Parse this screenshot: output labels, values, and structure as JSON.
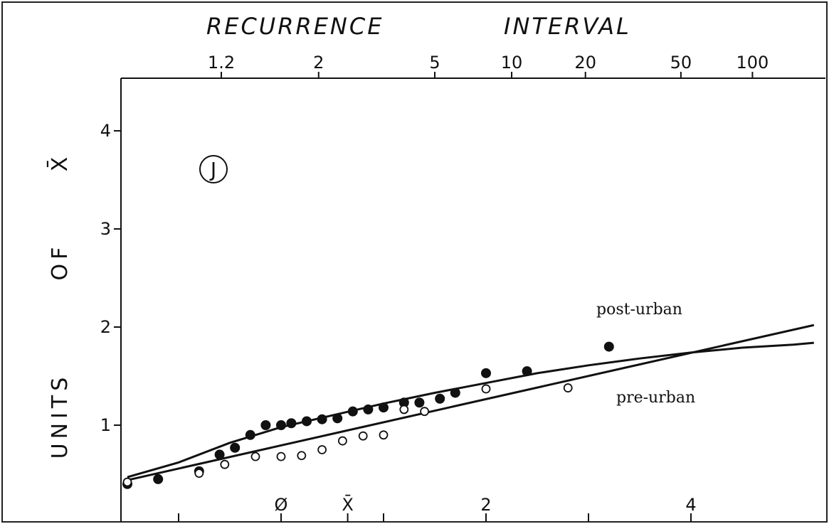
{
  "chart_data": {
    "type": "scatter",
    "panel_label": "J",
    "top_axis": {
      "title": "RECURRENCE INTERVAL",
      "title_words": [
        "RECURRENCE",
        "INTERVAL"
      ],
      "ticks": [
        {
          "label": "1.2",
          "value": 1.2
        },
        {
          "label": "2",
          "value": 2
        },
        {
          "label": "5",
          "value": 5
        },
        {
          "label": "10",
          "value": 10
        },
        {
          "label": "20",
          "value": 20
        },
        {
          "label": "50",
          "value": 50
        },
        {
          "label": "100",
          "value": 100
        }
      ]
    },
    "ylabel": "UNITS OF X̄",
    "ylabel_words": [
      "UNITS",
      "OF",
      "X̄"
    ],
    "ylim": [
      0,
      4.5
    ],
    "yticks": [
      1,
      2,
      3,
      4
    ],
    "xlim": [
      -1.9,
      5.3
    ],
    "bottom_axis": {
      "ticks": [
        {
          "label": "Ø",
          "value": 0
        },
        {
          "label": "X̄",
          "value": 0.65
        },
        {
          "label": "2",
          "value": 2
        },
        {
          "label": "4",
          "value": 4
        }
      ]
    },
    "series": [
      {
        "name": "post-urban",
        "marker": "filled",
        "points": [
          [
            -1.5,
            0.4
          ],
          [
            -1.2,
            0.45
          ],
          [
            -0.8,
            0.53
          ],
          [
            -0.6,
            0.7
          ],
          [
            -0.45,
            0.77
          ],
          [
            -0.3,
            0.9
          ],
          [
            -0.15,
            1.0
          ],
          [
            0.0,
            1.0
          ],
          [
            0.1,
            1.02
          ],
          [
            0.25,
            1.04
          ],
          [
            0.4,
            1.06
          ],
          [
            0.55,
            1.07
          ],
          [
            0.7,
            1.14
          ],
          [
            0.85,
            1.16
          ],
          [
            1.0,
            1.18
          ],
          [
            1.2,
            1.23
          ],
          [
            1.35,
            1.23
          ],
          [
            1.55,
            1.27
          ],
          [
            1.7,
            1.33
          ],
          [
            2.0,
            1.53
          ],
          [
            2.4,
            1.55
          ],
          [
            3.2,
            1.8
          ]
        ],
        "fit": [
          [
            -1.5,
            0.47
          ],
          [
            -1.0,
            0.62
          ],
          [
            -0.5,
            0.82
          ],
          [
            0.0,
            0.98
          ],
          [
            0.5,
            1.1
          ],
          [
            1.0,
            1.22
          ],
          [
            1.5,
            1.33
          ],
          [
            2.0,
            1.43
          ],
          [
            2.5,
            1.53
          ],
          [
            3.0,
            1.61
          ],
          [
            3.5,
            1.68
          ],
          [
            4.0,
            1.74
          ],
          [
            4.5,
            1.79
          ],
          [
            5.0,
            1.82
          ],
          [
            5.2,
            1.84
          ]
        ]
      },
      {
        "name": "pre-urban",
        "marker": "open",
        "points": [
          [
            -1.5,
            0.42
          ],
          [
            -0.8,
            0.51
          ],
          [
            -0.55,
            0.6
          ],
          [
            -0.25,
            0.68
          ],
          [
            0.0,
            0.68
          ],
          [
            0.2,
            0.69
          ],
          [
            0.4,
            0.75
          ],
          [
            0.6,
            0.84
          ],
          [
            0.8,
            0.89
          ],
          [
            1.0,
            0.9
          ],
          [
            1.2,
            1.16
          ],
          [
            1.4,
            1.14
          ],
          [
            2.0,
            1.37
          ],
          [
            2.8,
            1.38
          ]
        ],
        "fit": [
          [
            -1.5,
            0.44
          ],
          [
            5.2,
            2.02
          ]
        ]
      }
    ],
    "annotations": [
      "post-urban",
      "pre-urban"
    ]
  }
}
